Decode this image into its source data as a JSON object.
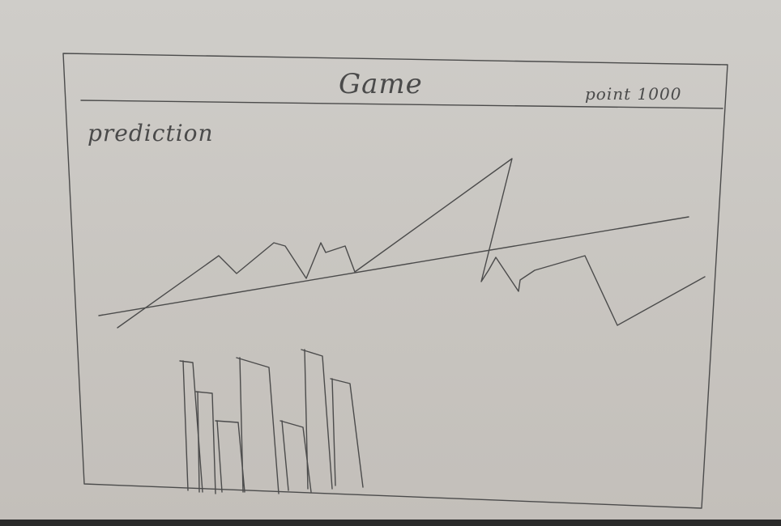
{
  "header": {
    "title": "Game",
    "points_label": "point 1000"
  },
  "main": {
    "prediction_label": "prediction"
  },
  "colors": {
    "pencil": "#4b4b4b",
    "paper": "#cfcdc9"
  }
}
